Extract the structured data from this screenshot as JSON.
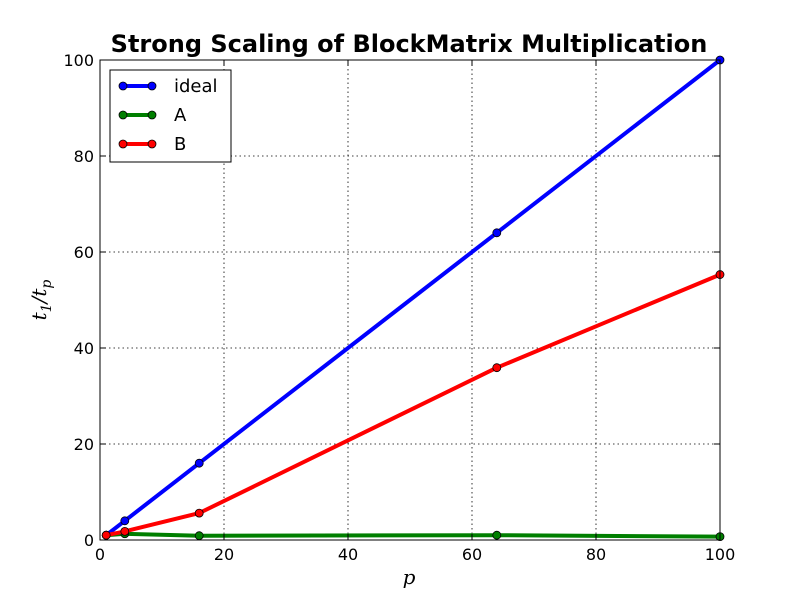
{
  "chart_data": {
    "type": "line",
    "title": "Strong Scaling of BlockMatrix Multiplication",
    "xlabel": "p",
    "ylabel_base": "t",
    "ylabel_num_sub": "1",
    "ylabel_sep": "/",
    "ylabel_den_sub": "p",
    "xlim": [
      0,
      100
    ],
    "ylim": [
      0,
      100
    ],
    "xticks": [
      0,
      20,
      40,
      60,
      80,
      100
    ],
    "yticks": [
      0,
      20,
      40,
      60,
      80,
      100
    ],
    "grid": true,
    "legend_position": "top-left",
    "series": [
      {
        "name": "ideal",
        "color": "#0000ff",
        "x": [
          1,
          4,
          16,
          64,
          100
        ],
        "y": [
          1,
          4,
          16,
          64,
          100
        ]
      },
      {
        "name": "A",
        "color": "#007f00",
        "x": [
          1,
          4,
          16,
          64,
          100
        ],
        "y": [
          1.0,
          1.3,
          0.9,
          1.0,
          0.7
        ]
      },
      {
        "name": "B",
        "color": "#ff0000",
        "x": [
          1,
          4,
          16,
          64,
          100
        ],
        "y": [
          1.0,
          1.8,
          5.6,
          35.9,
          55.3
        ]
      }
    ]
  }
}
